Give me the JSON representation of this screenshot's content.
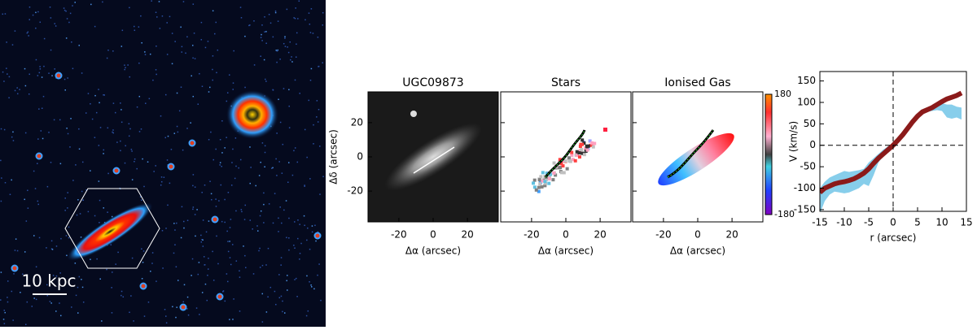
{
  "image": {
    "scale_label": "10 kpc"
  },
  "maps": {
    "panels": [
      {
        "title": "UGC09873"
      },
      {
        "title": "Stars"
      },
      {
        "title": "Ionised Gas"
      }
    ],
    "xlabel": "Δα (arcsec)",
    "ylabel": "Δδ (arcsec)",
    "xlim": [
      -38,
      38
    ],
    "ylim": [
      -38,
      38
    ],
    "xticks": [
      -20,
      0,
      20
    ],
    "yticks": [
      -20,
      0,
      20
    ],
    "colorbar": {
      "lim": [
        -180,
        180
      ],
      "ticks": [
        180,
        -180
      ]
    }
  },
  "chart_data": {
    "type": "line",
    "xlabel": "r (arcsec)",
    "ylabel": "V (km/s)",
    "xlim": [
      -15,
      15
    ],
    "ylim": [
      -154,
      172
    ],
    "xticks": [
      -15,
      -10,
      -5,
      0,
      5,
      10,
      15
    ],
    "yticks": [
      -150,
      -100,
      -50,
      0,
      50,
      100,
      150
    ],
    "hlines": [
      0
    ],
    "vlines": [
      0
    ],
    "x": [
      -15,
      -14,
      -13,
      -12,
      -11,
      -10,
      -9,
      -8,
      -7,
      -6,
      -5,
      -4,
      -3,
      -2,
      -1,
      0,
      1,
      2,
      3,
      4,
      5,
      6,
      7,
      8,
      9,
      10,
      11,
      12,
      13,
      14
    ],
    "band": {
      "color": "#87ceeb",
      "lower": [
        -160,
        -130,
        -115,
        -108,
        -110,
        -112,
        -110,
        -105,
        -100,
        -90,
        -95,
        -70,
        -40,
        -25,
        -12,
        -5,
        5,
        20,
        35,
        50,
        60,
        72,
        78,
        80,
        82,
        80,
        65,
        62,
        65,
        60
      ],
      "upper": [
        -100,
        -85,
        -75,
        -70,
        -65,
        -60,
        -62,
        -60,
        -58,
        -55,
        -40,
        -30,
        -20,
        -10,
        -2,
        5,
        15,
        30,
        45,
        60,
        75,
        82,
        88,
        92,
        95,
        98,
        95,
        95,
        90,
        88
      ]
    },
    "series": [
      {
        "color": "#8b1a1a",
        "values": [
          -110,
          -100,
          -95,
          -90,
          -87,
          -85,
          -82,
          -78,
          -72,
          -65,
          -55,
          -42,
          -30,
          -20,
          -10,
          0,
          12,
          25,
          40,
          55,
          68,
          78,
          83,
          88,
          95,
          102,
          108,
          112,
          116,
          122
        ]
      }
    ]
  }
}
